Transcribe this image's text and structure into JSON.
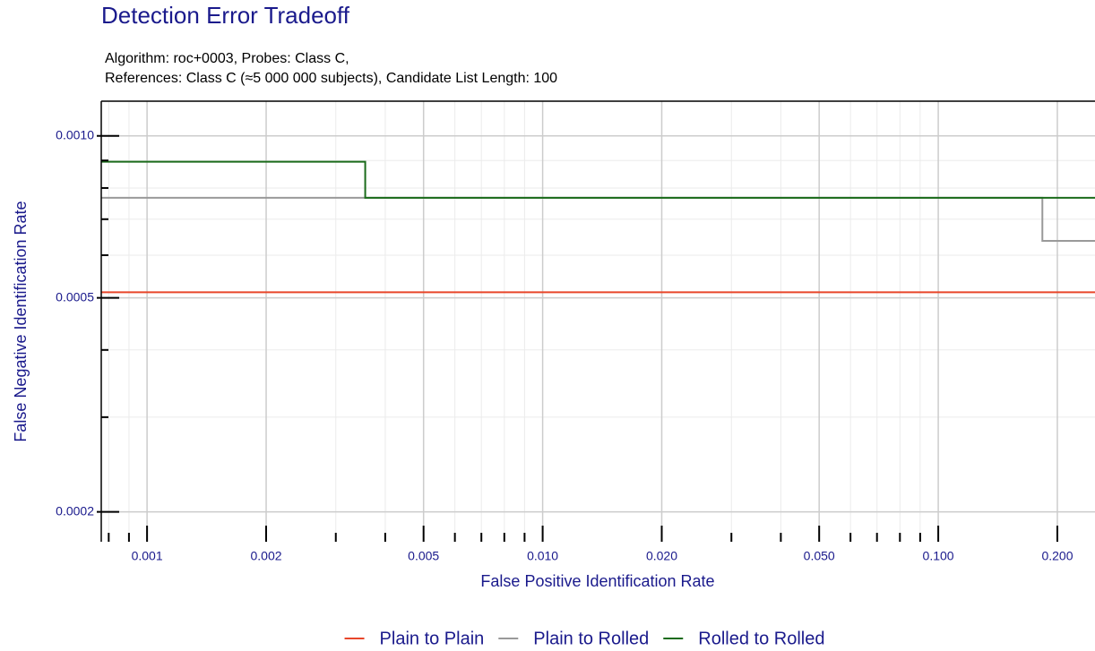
{
  "chart_data": {
    "type": "line",
    "title": "Detection Error Tradeoff",
    "subtitle": [
      "Algorithm: roc+0003, Probes: Class C,",
      "References: Class C (≈5 000 000 subjects), Candidate List Length: 100"
    ],
    "x_label": "False Positive Identification Rate",
    "y_label": "False Negative Identification Rate",
    "xscale": "log",
    "yscale": "log",
    "grid": true,
    "legend": "bottom",
    "xlim": [
      0.000766,
      0.249
    ],
    "ylim": [
      0.000176,
      0.00116
    ],
    "xticks": [
      0.001,
      0.002,
      0.005,
      {
        "value": 0.01,
        "label": "0.010"
      },
      {
        "value": 0.02,
        "label": "0.020"
      },
      {
        "value": 0.05,
        "label": "0.050"
      },
      {
        "value": 0.1,
        "label": "0.100"
      },
      {
        "value": 0.2,
        "label": "0.200"
      }
    ],
    "xminorticks": [
      0.0008,
      0.0009,
      0.003,
      0.004,
      0.006,
      0.007,
      0.008,
      0.009,
      0.03,
      0.04,
      0.06,
      0.07,
      0.08,
      0.09
    ],
    "yticks": [
      {
        "value": 0.001,
        "label": "0.0010"
      },
      0.0005,
      0.0002
    ],
    "yminorticks": [
      0.0009,
      0.0008,
      0.0007,
      0.0006,
      0.0004,
      0.0003
    ],
    "series": [
      {
        "name": "Plain to Plain",
        "color": "#e8462a",
        "x": [
          0.000766,
          0.249
        ],
        "values": [
          0.000512,
          0.000512
        ]
      },
      {
        "name": "Plain to Rolled",
        "color": "#999999",
        "x": [
          0.000766,
          0.1833,
          0.1833,
          0.249
        ],
        "values": [
          0.000767,
          0.000767,
          0.000638,
          0.000638
        ]
      },
      {
        "name": "Rolled to Rolled",
        "color": "#1a6b1a",
        "x": [
          0.000766,
          0.00356,
          0.00356,
          0.249
        ],
        "values": [
          0.000895,
          0.000895,
          0.000767,
          0.000767
        ]
      }
    ]
  }
}
